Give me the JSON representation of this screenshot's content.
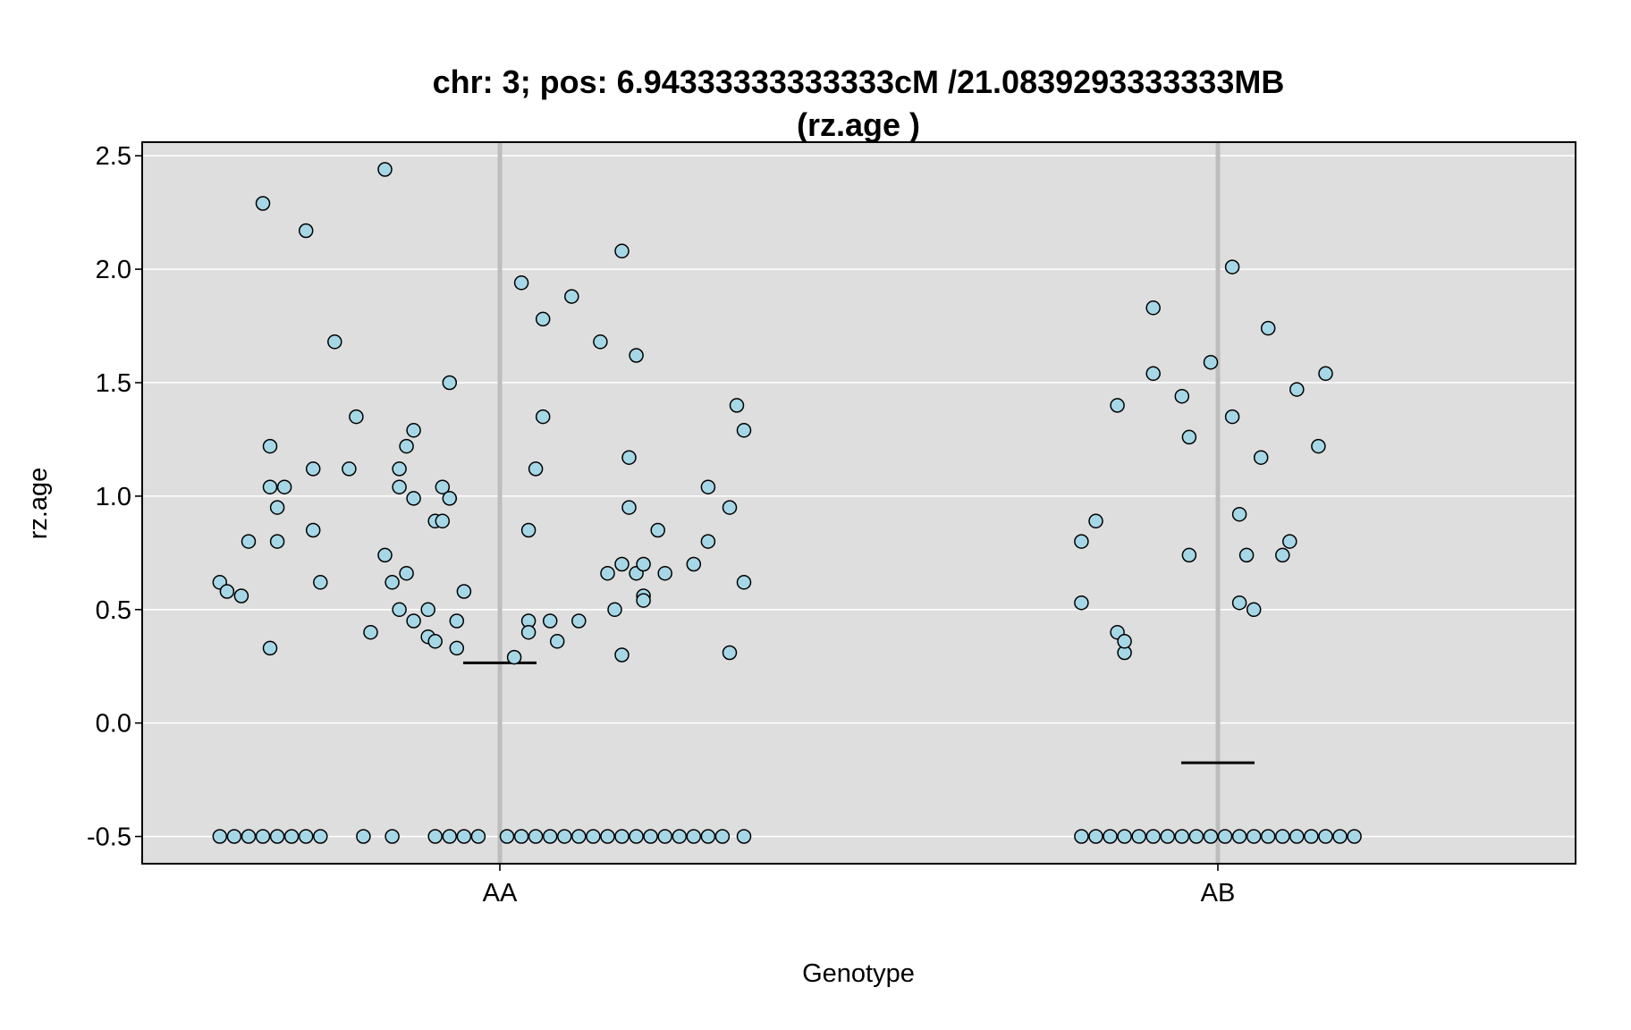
{
  "chart_data": {
    "type": "scatter",
    "title_line1": "chr: 3; pos: 6.94333333333333cM /21.0839293333333MB",
    "title_line2": "(rz.age )",
    "xlabel": "Genotype",
    "ylabel": "rz.age",
    "categories": [
      "AA",
      "AB"
    ],
    "ylim": [
      -0.62,
      2.56
    ],
    "yticks": [
      -0.5,
      0.0,
      0.5,
      1.0,
      1.5,
      2.0,
      2.5
    ],
    "ytick_labels": [
      "-0.5",
      "0.0",
      "0.5",
      "1.0",
      "1.5",
      "2.0",
      "2.5"
    ],
    "grid": true,
    "colors": {
      "panel": "#dedede",
      "gridline": "#ffffff",
      "point_fill": "#a6d7e6",
      "point_stroke": "#000000",
      "category_line": "#bdbdbd",
      "mean_line": "#000000"
    },
    "series": [
      {
        "category": "AA",
        "mean": 0.265,
        "points": [
          {
            "x": -0.39,
            "y": 0.62
          },
          {
            "x": -0.38,
            "y": 0.58
          },
          {
            "x": -0.36,
            "y": 0.56
          },
          {
            "x": -0.35,
            "y": 0.8
          },
          {
            "x": -0.33,
            "y": 2.29
          },
          {
            "x": -0.32,
            "y": 1.22
          },
          {
            "x": -0.32,
            "y": 1.04
          },
          {
            "x": -0.31,
            "y": 0.95
          },
          {
            "x": -0.31,
            "y": 0.8
          },
          {
            "x": -0.3,
            "y": 1.04
          },
          {
            "x": -0.32,
            "y": 0.33
          },
          {
            "x": -0.27,
            "y": 2.17
          },
          {
            "x": -0.26,
            "y": 1.12
          },
          {
            "x": -0.26,
            "y": 0.85
          },
          {
            "x": -0.25,
            "y": 0.62
          },
          {
            "x": -0.23,
            "y": 1.68
          },
          {
            "x": -0.21,
            "y": 1.12
          },
          {
            "x": -0.2,
            "y": 1.35
          },
          {
            "x": -0.18,
            "y": 0.4
          },
          {
            "x": -0.16,
            "y": 2.44
          },
          {
            "x": -0.16,
            "y": 0.74
          },
          {
            "x": -0.15,
            "y": 0.62
          },
          {
            "x": -0.14,
            "y": 1.12
          },
          {
            "x": -0.14,
            "y": 1.04
          },
          {
            "x": -0.13,
            "y": 0.66
          },
          {
            "x": -0.13,
            "y": 1.22
          },
          {
            "x": -0.12,
            "y": 1.29
          },
          {
            "x": -0.12,
            "y": 0.99
          },
          {
            "x": -0.14,
            "y": 0.5
          },
          {
            "x": -0.12,
            "y": 0.45
          },
          {
            "x": -0.1,
            "y": 0.5
          },
          {
            "x": -0.1,
            "y": 0.38
          },
          {
            "x": -0.09,
            "y": 0.89
          },
          {
            "x": -0.09,
            "y": 0.36
          },
          {
            "x": -0.08,
            "y": 0.89
          },
          {
            "x": -0.08,
            "y": 1.04
          },
          {
            "x": -0.07,
            "y": 1.5
          },
          {
            "x": -0.07,
            "y": 0.99
          },
          {
            "x": -0.06,
            "y": 0.45
          },
          {
            "x": -0.06,
            "y": 0.33
          },
          {
            "x": -0.05,
            "y": 0.58
          },
          {
            "x": 0.03,
            "y": 1.94
          },
          {
            "x": 0.02,
            "y": 0.29
          },
          {
            "x": 0.04,
            "y": 0.45
          },
          {
            "x": 0.04,
            "y": 0.85
          },
          {
            "x": 0.04,
            "y": 0.4
          },
          {
            "x": 0.05,
            "y": 1.12
          },
          {
            "x": 0.06,
            "y": 1.35
          },
          {
            "x": 0.06,
            "y": 1.78
          },
          {
            "x": 0.07,
            "y": 0.45
          },
          {
            "x": 0.08,
            "y": 0.36
          },
          {
            "x": 0.1,
            "y": 1.88
          },
          {
            "x": 0.11,
            "y": 0.45
          },
          {
            "x": 0.14,
            "y": 1.68
          },
          {
            "x": 0.15,
            "y": 0.66
          },
          {
            "x": 0.16,
            "y": 0.5
          },
          {
            "x": 0.17,
            "y": 0.3
          },
          {
            "x": 0.17,
            "y": 0.7
          },
          {
            "x": 0.17,
            "y": 2.08
          },
          {
            "x": 0.18,
            "y": 1.17
          },
          {
            "x": 0.18,
            "y": 0.95
          },
          {
            "x": 0.19,
            "y": 1.62
          },
          {
            "x": 0.19,
            "y": 0.66
          },
          {
            "x": 0.2,
            "y": 0.56
          },
          {
            "x": 0.2,
            "y": 0.7
          },
          {
            "x": 0.2,
            "y": 0.54
          },
          {
            "x": 0.22,
            "y": 0.85
          },
          {
            "x": 0.23,
            "y": 0.66
          },
          {
            "x": 0.27,
            "y": 0.7
          },
          {
            "x": 0.29,
            "y": 1.04
          },
          {
            "x": 0.29,
            "y": 0.8
          },
          {
            "x": 0.32,
            "y": 0.95
          },
          {
            "x": 0.32,
            "y": 0.31
          },
          {
            "x": 0.33,
            "y": 1.4
          },
          {
            "x": 0.34,
            "y": 0.62
          },
          {
            "x": 0.34,
            "y": 1.29
          },
          {
            "x": -0.39,
            "y": -0.5
          },
          {
            "x": -0.37,
            "y": -0.5
          },
          {
            "x": -0.35,
            "y": -0.5
          },
          {
            "x": -0.33,
            "y": -0.5
          },
          {
            "x": -0.31,
            "y": -0.5
          },
          {
            "x": -0.29,
            "y": -0.5
          },
          {
            "x": -0.27,
            "y": -0.5
          },
          {
            "x": -0.25,
            "y": -0.5
          },
          {
            "x": -0.19,
            "y": -0.5
          },
          {
            "x": -0.15,
            "y": -0.5
          },
          {
            "x": -0.09,
            "y": -0.5
          },
          {
            "x": -0.07,
            "y": -0.5
          },
          {
            "x": -0.05,
            "y": -0.5
          },
          {
            "x": -0.03,
            "y": -0.5
          },
          {
            "x": 0.01,
            "y": -0.5
          },
          {
            "x": 0.03,
            "y": -0.5
          },
          {
            "x": 0.05,
            "y": -0.5
          },
          {
            "x": 0.07,
            "y": -0.5
          },
          {
            "x": 0.09,
            "y": -0.5
          },
          {
            "x": 0.11,
            "y": -0.5
          },
          {
            "x": 0.13,
            "y": -0.5
          },
          {
            "x": 0.15,
            "y": -0.5
          },
          {
            "x": 0.17,
            "y": -0.5
          },
          {
            "x": 0.19,
            "y": -0.5
          },
          {
            "x": 0.21,
            "y": -0.5
          },
          {
            "x": 0.23,
            "y": -0.5
          },
          {
            "x": 0.25,
            "y": -0.5
          },
          {
            "x": 0.27,
            "y": -0.5
          },
          {
            "x": 0.29,
            "y": -0.5
          },
          {
            "x": 0.31,
            "y": -0.5
          },
          {
            "x": 0.34,
            "y": -0.5
          }
        ]
      },
      {
        "category": "AB",
        "mean": -0.175,
        "points": [
          {
            "x": -0.19,
            "y": 0.8
          },
          {
            "x": -0.19,
            "y": 0.53
          },
          {
            "x": -0.17,
            "y": 0.89
          },
          {
            "x": -0.14,
            "y": 1.4
          },
          {
            "x": -0.14,
            "y": 0.4
          },
          {
            "x": -0.13,
            "y": 0.31
          },
          {
            "x": -0.13,
            "y": 0.36
          },
          {
            "x": -0.09,
            "y": 1.83
          },
          {
            "x": -0.09,
            "y": 1.54
          },
          {
            "x": -0.05,
            "y": 1.44
          },
          {
            "x": -0.04,
            "y": 1.26
          },
          {
            "x": -0.04,
            "y": 0.74
          },
          {
            "x": -0.01,
            "y": 1.59
          },
          {
            "x": 0.02,
            "y": 2.01
          },
          {
            "x": 0.02,
            "y": 1.35
          },
          {
            "x": 0.03,
            "y": 0.92
          },
          {
            "x": 0.03,
            "y": 0.53
          },
          {
            "x": 0.04,
            "y": 0.74
          },
          {
            "x": 0.05,
            "y": 0.5
          },
          {
            "x": 0.06,
            "y": 1.17
          },
          {
            "x": 0.07,
            "y": 1.74
          },
          {
            "x": 0.09,
            "y": 0.74
          },
          {
            "x": 0.1,
            "y": 0.8
          },
          {
            "x": 0.11,
            "y": 1.47
          },
          {
            "x": 0.14,
            "y": 1.22
          },
          {
            "x": 0.15,
            "y": 1.54
          },
          {
            "x": -0.19,
            "y": -0.5
          },
          {
            "x": -0.17,
            "y": -0.5
          },
          {
            "x": -0.15,
            "y": -0.5
          },
          {
            "x": -0.13,
            "y": -0.5
          },
          {
            "x": -0.11,
            "y": -0.5
          },
          {
            "x": -0.09,
            "y": -0.5
          },
          {
            "x": -0.07,
            "y": -0.5
          },
          {
            "x": -0.05,
            "y": -0.5
          },
          {
            "x": -0.03,
            "y": -0.5
          },
          {
            "x": -0.01,
            "y": -0.5
          },
          {
            "x": 0.01,
            "y": -0.5
          },
          {
            "x": 0.03,
            "y": -0.5
          },
          {
            "x": 0.05,
            "y": -0.5
          },
          {
            "x": 0.07,
            "y": -0.5
          },
          {
            "x": 0.09,
            "y": -0.5
          },
          {
            "x": 0.11,
            "y": -0.5
          },
          {
            "x": 0.13,
            "y": -0.5
          },
          {
            "x": 0.15,
            "y": -0.5
          },
          {
            "x": 0.17,
            "y": -0.5
          },
          {
            "x": 0.19,
            "y": -0.5
          }
        ]
      }
    ]
  }
}
